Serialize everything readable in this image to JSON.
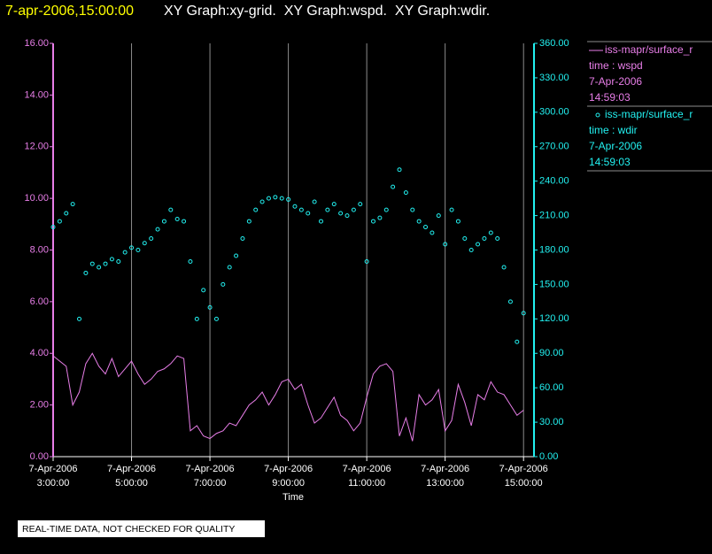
{
  "chart_data": {
    "type": "line",
    "title": "7-apr-2006,15:00:00",
    "subtitle": "XY Graph:xy-grid.  XY Graph:wspd.  XY Graph:wdir.",
    "x_label": "Time",
    "note": "REAL-TIME DATA, NOT CHECKED FOR QUALITY",
    "grid": true,
    "x": [
      "2006-04-07 03:00",
      "2006-04-07 03:10",
      "2006-04-07 03:20",
      "2006-04-07 03:30",
      "2006-04-07 03:40",
      "2006-04-07 03:50",
      "2006-04-07 04:00",
      "2006-04-07 04:10",
      "2006-04-07 04:20",
      "2006-04-07 04:30",
      "2006-04-07 04:40",
      "2006-04-07 04:50",
      "2006-04-07 05:00",
      "2006-04-07 05:10",
      "2006-04-07 05:20",
      "2006-04-07 05:30",
      "2006-04-07 05:40",
      "2006-04-07 05:50",
      "2006-04-07 06:00",
      "2006-04-07 06:10",
      "2006-04-07 06:20",
      "2006-04-07 06:30",
      "2006-04-07 06:40",
      "2006-04-07 06:50",
      "2006-04-07 07:00",
      "2006-04-07 07:10",
      "2006-04-07 07:20",
      "2006-04-07 07:30",
      "2006-04-07 07:40",
      "2006-04-07 07:50",
      "2006-04-07 08:00",
      "2006-04-07 08:10",
      "2006-04-07 08:20",
      "2006-04-07 08:30",
      "2006-04-07 08:40",
      "2006-04-07 08:50",
      "2006-04-07 09:00",
      "2006-04-07 09:10",
      "2006-04-07 09:20",
      "2006-04-07 09:30",
      "2006-04-07 09:40",
      "2006-04-07 09:50",
      "2006-04-07 10:00",
      "2006-04-07 10:10",
      "2006-04-07 10:20",
      "2006-04-07 10:30",
      "2006-04-07 10:40",
      "2006-04-07 10:50",
      "2006-04-07 11:00",
      "2006-04-07 11:10",
      "2006-04-07 11:20",
      "2006-04-07 11:30",
      "2006-04-07 11:40",
      "2006-04-07 11:50",
      "2006-04-07 12:00",
      "2006-04-07 12:10",
      "2006-04-07 12:20",
      "2006-04-07 12:30",
      "2006-04-07 12:40",
      "2006-04-07 12:50",
      "2006-04-07 13:00",
      "2006-04-07 13:10",
      "2006-04-07 13:20",
      "2006-04-07 13:30",
      "2006-04-07 13:40",
      "2006-04-07 13:50",
      "2006-04-07 14:00",
      "2006-04-07 14:10",
      "2006-04-07 14:20",
      "2006-04-07 14:30",
      "2006-04-07 14:40",
      "2006-04-07 14:50",
      "2006-04-07 15:00"
    ],
    "xlim": [
      "2006-04-07 03:00",
      "2006-04-07 15:16"
    ],
    "xticks": [
      {
        "value": "2006-04-07 03:00",
        "label": [
          "7-Apr-2006",
          "3:00:00"
        ]
      },
      {
        "value": "2006-04-07 05:00",
        "label": [
          "7-Apr-2006",
          "5:00:00"
        ]
      },
      {
        "value": "2006-04-07 07:00",
        "label": [
          "7-Apr-2006",
          "7:00:00"
        ]
      },
      {
        "value": "2006-04-07 09:00",
        "label": [
          "7-Apr-2006",
          "9:00:00"
        ]
      },
      {
        "value": "2006-04-07 11:00",
        "label": [
          "7-Apr-2006",
          "11:00:00"
        ]
      },
      {
        "value": "2006-04-07 13:00",
        "label": [
          "7-Apr-2006",
          "13:00:00"
        ]
      },
      {
        "value": "2006-04-07 15:00",
        "label": [
          "7-Apr-2006",
          "15:00:00"
        ]
      }
    ],
    "ylim": [
      0,
      16
    ],
    "yticks": [
      {
        "value": 0,
        "label": "0.00"
      },
      {
        "value": 2,
        "label": "2.00"
      },
      {
        "value": 4,
        "label": "4.00"
      },
      {
        "value": 6,
        "label": "6.00"
      },
      {
        "value": 8,
        "label": "8.00"
      },
      {
        "value": 10,
        "label": "10.00"
      },
      {
        "value": 12,
        "label": "12.00"
      },
      {
        "value": 14,
        "label": "14.00"
      },
      {
        "value": 16,
        "label": "16.00"
      }
    ],
    "y2lim": [
      0,
      360
    ],
    "y2ticks": [
      {
        "value": 0,
        "label": "0.00"
      },
      {
        "value": 30,
        "label": "30.00"
      },
      {
        "value": 60,
        "label": "60.00"
      },
      {
        "value": 90,
        "label": "90.00"
      },
      {
        "value": 120,
        "label": "120.00"
      },
      {
        "value": 150,
        "label": "150.00"
      },
      {
        "value": 180,
        "label": "180.00"
      },
      {
        "value": 210,
        "label": "210.00"
      },
      {
        "value": 240,
        "label": "240.00"
      },
      {
        "value": 270,
        "label": "270.00"
      },
      {
        "value": 300,
        "label": "300.00"
      },
      {
        "value": 330,
        "label": "330.00"
      },
      {
        "value": 360,
        "label": "360.00"
      }
    ],
    "series": [
      {
        "name": "iss-mapr/surface_r",
        "color": "#e87ee8",
        "style": "line",
        "axis": "y",
        "legend_lines": [
          "time : wspd",
          "7-Apr-2006",
          "14:59:03"
        ],
        "values": [
          3.9,
          3.7,
          3.5,
          2.0,
          2.5,
          3.6,
          4.0,
          3.5,
          3.2,
          3.8,
          3.1,
          3.4,
          3.7,
          3.2,
          2.8,
          3.0,
          3.3,
          3.4,
          3.6,
          3.9,
          3.8,
          1.0,
          1.2,
          0.8,
          0.7,
          0.9,
          1.0,
          1.3,
          1.2,
          1.6,
          2.0,
          2.2,
          2.5,
          2.0,
          2.4,
          2.9,
          3.0,
          2.6,
          2.8,
          2.0,
          1.3,
          1.5,
          1.9,
          2.3,
          1.6,
          1.4,
          1.0,
          1.3,
          2.3,
          3.2,
          3.5,
          3.6,
          3.3,
          0.8,
          1.5,
          0.6,
          2.4,
          2.0,
          2.2,
          2.6,
          1.0,
          1.4,
          2.8,
          2.1,
          1.2,
          2.4,
          2.2,
          2.9,
          2.5,
          2.4,
          2.0,
          1.6,
          1.8
        ]
      },
      {
        "name": "iss-mapr/surface_r",
        "color": "#22f0f0",
        "style": "scatter",
        "axis": "y2",
        "legend_lines": [
          "time : wdir",
          "7-Apr-2006",
          "14:59:03"
        ],
        "values": [
          200,
          205,
          212,
          220,
          120,
          160,
          168,
          165,
          168,
          172,
          170,
          178,
          182,
          180,
          186,
          190,
          198,
          205,
          215,
          207,
          205,
          170,
          120,
          145,
          130,
          120,
          150,
          165,
          175,
          190,
          205,
          215,
          222,
          225,
          226,
          225,
          224,
          218,
          215,
          212,
          222,
          205,
          215,
          220,
          212,
          210,
          215,
          220,
          170,
          205,
          208,
          215,
          235,
          250,
          230,
          215,
          205,
          200,
          195,
          210,
          185,
          215,
          205,
          190,
          180,
          185,
          190,
          195,
          190,
          165,
          135,
          100,
          125
        ]
      }
    ]
  }
}
